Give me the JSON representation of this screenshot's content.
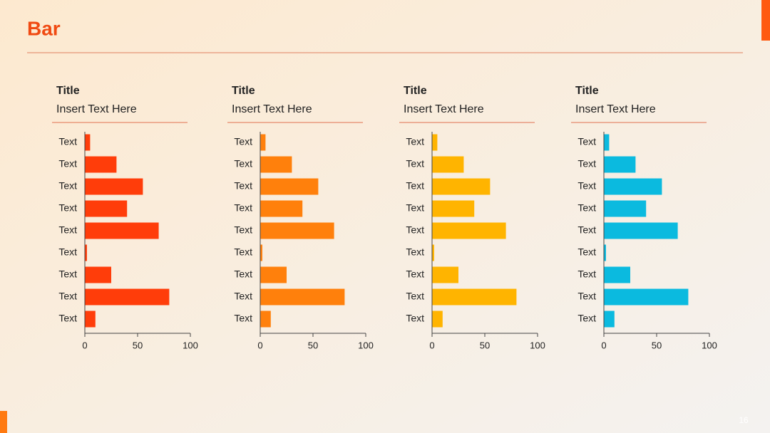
{
  "title": "Bar",
  "page_number": "16",
  "chart_data": [
    {
      "type": "bar",
      "orientation": "horizontal",
      "title": "Title",
      "subtitle": "Insert Text Here",
      "categories": [
        "Text",
        "Text",
        "Text",
        "Text",
        "Text",
        "Text",
        "Text",
        "Text",
        "Text"
      ],
      "values": [
        5,
        30,
        55,
        40,
        70,
        2,
        25,
        80,
        10
      ],
      "color": "#ff3d0a",
      "xlim": [
        0,
        100
      ],
      "xticks": [
        0,
        50,
        100
      ]
    },
    {
      "type": "bar",
      "orientation": "horizontal",
      "title": "Title",
      "subtitle": "Insert Text Here",
      "categories": [
        "Text",
        "Text",
        "Text",
        "Text",
        "Text",
        "Text",
        "Text",
        "Text",
        "Text"
      ],
      "values": [
        5,
        30,
        55,
        40,
        70,
        2,
        25,
        80,
        10
      ],
      "color": "#ff800c",
      "xlim": [
        0,
        100
      ],
      "xticks": [
        0,
        50,
        100
      ]
    },
    {
      "type": "bar",
      "orientation": "horizontal",
      "title": "Title",
      "subtitle": "Insert Text Here",
      "categories": [
        "Text",
        "Text",
        "Text",
        "Text",
        "Text",
        "Text",
        "Text",
        "Text",
        "Text"
      ],
      "values": [
        5,
        30,
        55,
        40,
        70,
        2,
        25,
        80,
        10
      ],
      "color": "#ffb400",
      "xlim": [
        0,
        100
      ],
      "xticks": [
        0,
        50,
        100
      ]
    },
    {
      "type": "bar",
      "orientation": "horizontal",
      "title": "Title",
      "subtitle": "Insert Text Here",
      "categories": [
        "Text",
        "Text",
        "Text",
        "Text",
        "Text",
        "Text",
        "Text",
        "Text",
        "Text"
      ],
      "values": [
        5,
        30,
        55,
        40,
        70,
        2,
        25,
        80,
        10
      ],
      "color": "#0bbadf",
      "xlim": [
        0,
        100
      ],
      "xticks": [
        0,
        50,
        100
      ]
    }
  ]
}
